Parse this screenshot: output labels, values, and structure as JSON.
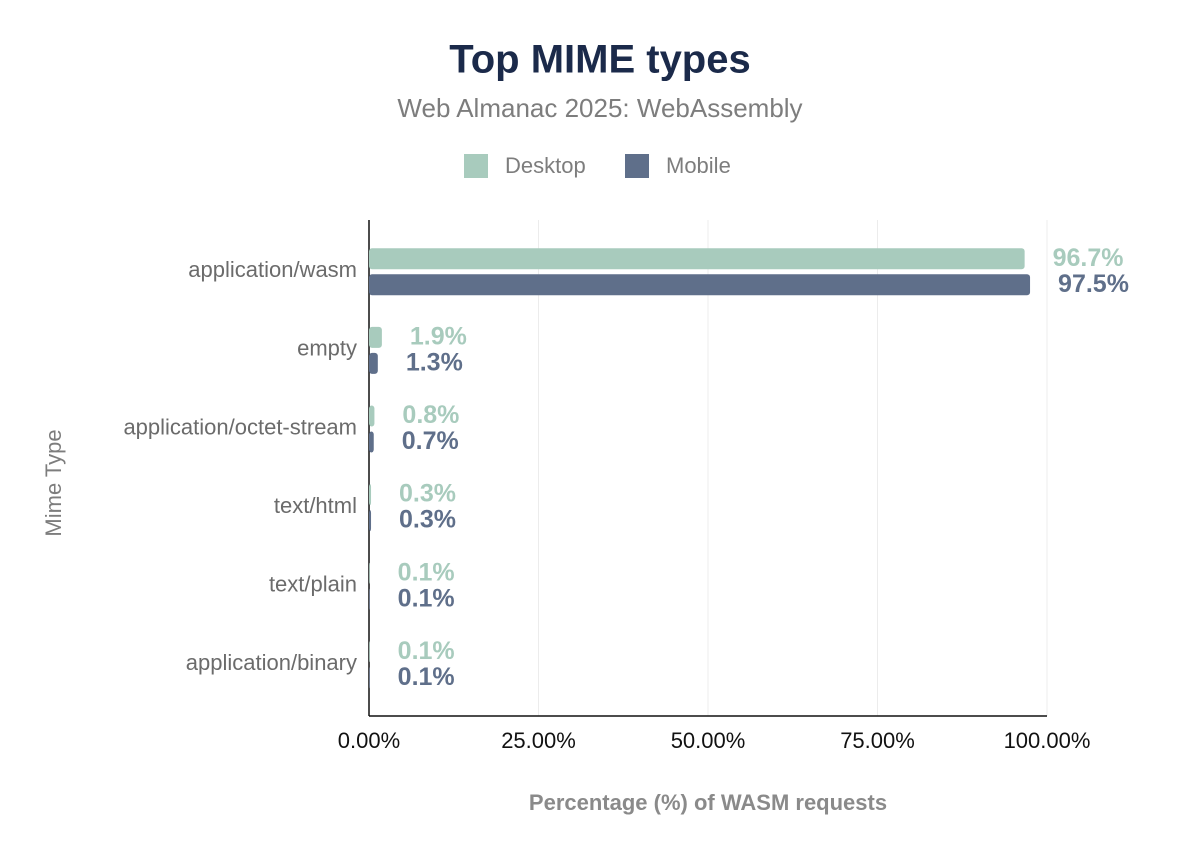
{
  "chart_data": {
    "type": "bar",
    "orientation": "horizontal",
    "title": "Top MIME types",
    "subtitle": "Web Almanac 2025: WebAssembly",
    "x_label": "Percentage (%) of WASM requests",
    "y_label": "Mime Type",
    "categories": [
      "application/wasm",
      "empty",
      "application/octet-stream",
      "text/html",
      "text/plain",
      "application/binary"
    ],
    "series": [
      {
        "name": "Desktop",
        "color": "#a8cbbd",
        "values": [
          96.7,
          1.9,
          0.8,
          0.3,
          0.1,
          0.1
        ],
        "value_labels": [
          "96.7%",
          "1.9%",
          "0.8%",
          "0.3%",
          "0.1%",
          "0.1%"
        ]
      },
      {
        "name": "Mobile",
        "color": "#5f6f8a",
        "values": [
          97.5,
          1.3,
          0.7,
          0.3,
          0.1,
          0.1
        ],
        "value_labels": [
          "97.5%",
          "1.3%",
          "0.7%",
          "0.3%",
          "0.1%",
          "0.1%"
        ]
      }
    ],
    "xlim": [
      0,
      100
    ],
    "xticks": [
      {
        "value": 0,
        "label": "0.00%"
      },
      {
        "value": 25,
        "label": "25.00%"
      },
      {
        "value": 50,
        "label": "50.00%"
      },
      {
        "value": 75,
        "label": "75.00%"
      },
      {
        "value": 100,
        "label": "100.00%"
      }
    ],
    "grid": true,
    "legend": "top"
  }
}
